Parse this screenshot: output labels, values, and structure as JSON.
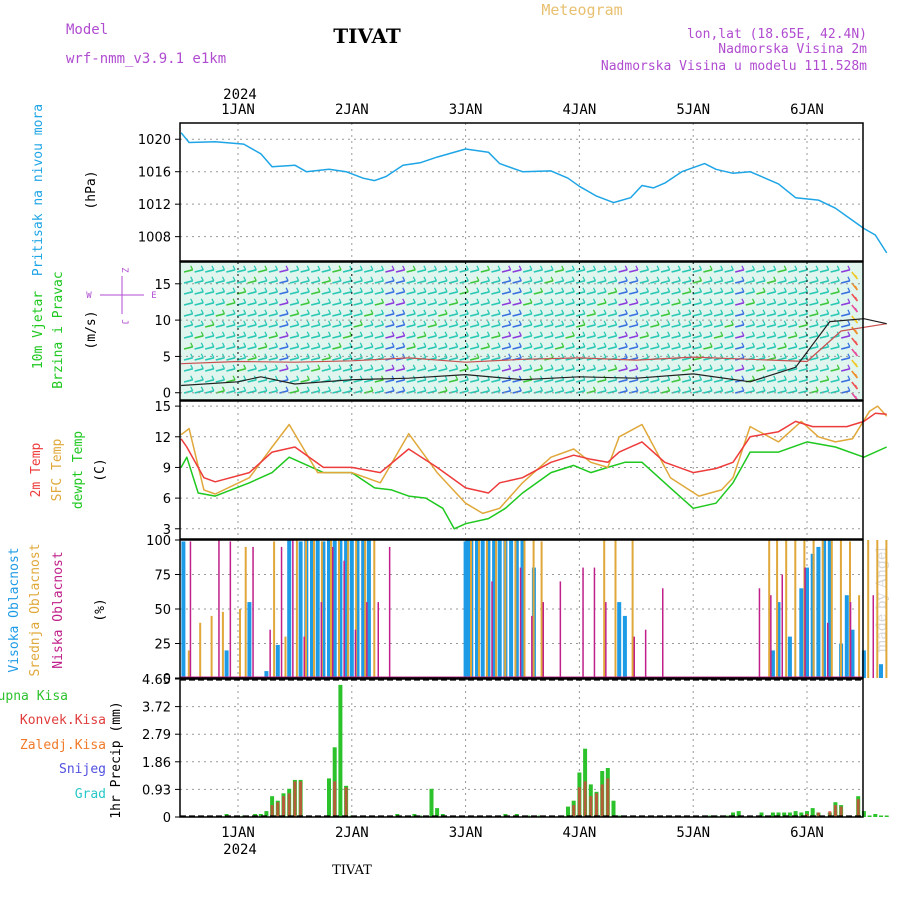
{
  "header": {
    "model_label": "Model",
    "model_name": "wrf-nmm_v3.9.1  e1km",
    "station": "TIVAT",
    "product": "Meteogram",
    "lonlat": "lon,lat (18.65E, 42.4N)",
    "elevation": "Nadmorska Visina 2m",
    "model_elevation": "Nadmorska Visina u modelu 111.528m",
    "footer_station": "TIVAT",
    "watermark": "made by Angel"
  },
  "colors": {
    "pressure": "#1ea5e6",
    "temp2m": "#ee3b3b",
    "sfc": "#e0a83a",
    "dew": "#1ec81e",
    "cloud_high": "#1e9be6",
    "cloud_mid": "#e0a83a",
    "cloud_low": "#c0208a",
    "precip_total": "#2cc22c",
    "precip_conv": "#e03c3c",
    "precip_frozen": "#f07a28",
    "precip_snow": "#5050e0",
    "precip_hail": "#28c8c8",
    "header_purple": "#b04cd0",
    "header_gold": "#e8c070"
  },
  "x_axis": {
    "year": "2024",
    "days": [
      "1JAN",
      "2JAN",
      "3JAN",
      "4JAN",
      "5JAN",
      "6JAN"
    ]
  },
  "panels": {
    "pressure": {
      "ylabel_main": "Pritisak na nivou mora",
      "unit": "(hPa)"
    },
    "wind": {
      "ylabel_main": "10m Vjetar",
      "ylabel_sub": "Brzina i Pravac",
      "unit": "(m/s)",
      "compass": {
        "n": "Z",
        "s": "J",
        "w": "W",
        "e": "E"
      }
    },
    "temp": {
      "label_2m": "2m Temp",
      "label_sfc": "SFC Temp",
      "label_dew": "dewpt Temp",
      "unit": "(C)"
    },
    "cloud": {
      "label_high": "Visoka Oblacnost",
      "label_mid": "Srednja Oblacnost",
      "label_low": "Niska Oblacnost",
      "unit": "(%)"
    },
    "precip": {
      "label_total": "Ukupna Kisa",
      "label_conv": "Konvek.Kisa",
      "label_frozen": "Zaledj.Kisa",
      "label_snow": "Snijeg",
      "label_hail": "Grad",
      "ylabel": "1hr Precip (mm)"
    }
  },
  "chart_data": [
    {
      "type": "line",
      "panel": "pressure",
      "ylabel": "Pritisak na nivou mora (hPa)",
      "ylim": [
        1005,
        1022
      ],
      "yticks": [
        "1008",
        "1012",
        "1016",
        "1020"
      ],
      "x_days": [
        -0.5,
        -0.43,
        -0.2,
        0.05,
        0.2,
        0.3,
        0.5,
        0.6,
        0.8,
        0.95,
        1.1,
        1.2,
        1.3,
        1.45,
        1.6,
        1.75,
        2.0,
        2.2,
        2.3,
        2.5,
        2.75,
        2.9,
        3.0,
        3.15,
        3.3,
        3.45,
        3.55,
        3.65,
        3.75,
        3.9,
        4.1,
        4.2,
        4.35,
        4.5,
        4.75,
        4.9,
        5.1,
        5.25,
        5.4,
        5.5,
        5.6,
        5.7
      ],
      "values": [
        1020.8,
        1019.6,
        1019.7,
        1019.4,
        1018.2,
        1016.6,
        1016.8,
        1016.0,
        1016.3,
        1016.0,
        1015.2,
        1014.9,
        1015.4,
        1016.8,
        1017.1,
        1017.8,
        1018.8,
        1018.4,
        1017.0,
        1016.0,
        1016.1,
        1015.2,
        1014.2,
        1013.0,
        1012.2,
        1012.8,
        1014.3,
        1014.0,
        1014.6,
        1016.0,
        1017.0,
        1016.3,
        1015.8,
        1016.0,
        1014.5,
        1012.8,
        1012.5,
        1011.5,
        1010.0,
        1009.0,
        1008.2,
        1006.0
      ]
    },
    {
      "type": "line",
      "panel": "wind",
      "ylabel": "10m Vjetar Brzina i Pravac (m/s)",
      "ylim": [
        -1,
        18
      ],
      "yticks": [
        "0",
        "5",
        "10",
        "15"
      ],
      "series": [
        {
          "name": "",
          "x_days": [
            -0.5,
            0.0,
            0.5,
            1.0,
            1.5,
            2.0,
            2.5,
            3.0,
            3.5,
            4.0,
            4.5,
            5.0,
            5.3,
            5.7
          ],
          "values": [
            4.0,
            4.3,
            4.2,
            4.4,
            4.8,
            4.2,
            4.6,
            4.8,
            4.5,
            4.9,
            4.6,
            4.3,
            8.5,
            9.5
          ]
        },
        {
          "name": "",
          "x_days": [
            -0.5,
            0.0,
            0.2,
            0.5,
            1.0,
            1.5,
            2.0,
            2.5,
            3.0,
            3.5,
            4.0,
            4.5,
            4.9,
            5.2,
            5.5,
            5.7
          ],
          "values": [
            1.0,
            1.5,
            2.2,
            1.2,
            1.8,
            2.0,
            2.5,
            1.8,
            2.2,
            2.0,
            2.6,
            1.5,
            3.5,
            9.8,
            10.2,
            9.5
          ]
        }
      ]
    },
    {
      "type": "line",
      "panel": "temp",
      "ylabel": "(C)",
      "ylim": [
        2,
        15.5
      ],
      "yticks": [
        "3",
        "6",
        "9",
        "12",
        "15"
      ],
      "series": [
        {
          "name": "2m Temp",
          "x_days": [
            -0.5,
            -0.45,
            -0.3,
            -0.2,
            0.1,
            0.3,
            0.5,
            0.75,
            1.0,
            1.25,
            1.5,
            1.75,
            2.0,
            2.2,
            2.3,
            2.5,
            2.75,
            2.95,
            3.1,
            3.25,
            3.35,
            3.55,
            3.75,
            4.0,
            4.2,
            4.35,
            4.5,
            4.75,
            4.9,
            5.05,
            5.15,
            5.35,
            5.5,
            5.6,
            5.7
          ],
          "values": [
            11.8,
            11.0,
            8.0,
            7.6,
            8.5,
            10.5,
            11.0,
            9.0,
            9.0,
            8.5,
            10.8,
            9.0,
            7.0,
            6.5,
            7.5,
            8.0,
            9.5,
            10.2,
            9.8,
            9.5,
            10.5,
            11.5,
            9.5,
            8.5,
            8.9,
            9.5,
            12.0,
            12.5,
            13.5,
            13.0,
            13.0,
            13.0,
            13.5,
            14.3,
            14.2
          ]
        },
        {
          "name": "SFC Temp",
          "x_days": [
            -0.5,
            -0.43,
            -0.3,
            -0.2,
            0.1,
            0.3,
            0.45,
            0.7,
            1.0,
            1.25,
            1.5,
            1.75,
            2.0,
            2.15,
            2.3,
            2.5,
            2.75,
            2.95,
            3.1,
            3.25,
            3.35,
            3.55,
            3.8,
            4.05,
            4.25,
            4.35,
            4.5,
            4.75,
            4.95,
            5.1,
            5.25,
            5.4,
            5.55,
            5.62,
            5.7
          ],
          "values": [
            12.2,
            12.8,
            6.8,
            6.4,
            8.0,
            11.0,
            13.2,
            8.5,
            8.5,
            7.5,
            12.3,
            8.5,
            5.5,
            4.5,
            5.0,
            7.5,
            10.0,
            10.8,
            9.5,
            9.0,
            12.0,
            13.2,
            8.0,
            6.2,
            6.8,
            8.0,
            13.0,
            11.5,
            13.5,
            12.0,
            11.5,
            11.8,
            14.5,
            15.0,
            14.0
          ]
        },
        {
          "name": "dewpt Temp",
          "x_days": [
            -0.5,
            -0.45,
            -0.35,
            -0.2,
            0.1,
            0.3,
            0.45,
            0.75,
            1.0,
            1.2,
            1.35,
            1.5,
            1.65,
            1.8,
            1.9,
            2.0,
            2.2,
            2.35,
            2.5,
            2.75,
            2.95,
            3.1,
            3.25,
            3.4,
            3.55,
            3.8,
            4.0,
            4.2,
            4.35,
            4.5,
            4.75,
            5.0,
            5.25,
            5.5,
            5.7
          ],
          "values": [
            9.0,
            10.0,
            6.5,
            6.2,
            7.5,
            8.5,
            10.0,
            8.5,
            8.5,
            7.0,
            6.8,
            6.2,
            6.0,
            5.0,
            3.0,
            3.5,
            4.0,
            5.0,
            6.5,
            8.5,
            9.2,
            8.5,
            9.0,
            9.5,
            9.5,
            7.0,
            5.0,
            5.5,
            7.5,
            10.5,
            10.5,
            11.5,
            11.0,
            10.0,
            11.0
          ]
        }
      ]
    },
    {
      "type": "bar",
      "panel": "cloud",
      "ylabel": "(%)",
      "ylim": [
        0,
        100
      ],
      "yticks": [
        "0",
        "25",
        "50",
        "75",
        "100"
      ],
      "series": [
        {
          "name": "Visoka Oblacnost",
          "x_days": [
            -0.48,
            -0.1,
            0.1,
            0.25,
            0.35,
            0.45,
            0.55,
            0.6,
            0.65,
            0.7,
            0.75,
            0.8,
            0.85,
            0.9,
            0.95,
            1.0,
            1.05,
            1.1,
            1.15,
            2.0,
            2.02,
            2.05,
            2.1,
            2.15,
            2.2,
            2.25,
            2.3,
            2.35,
            2.4,
            2.45,
            2.5,
            2.6,
            3.35,
            3.4,
            4.7,
            4.75,
            4.85,
            4.95,
            5.0,
            5.05,
            5.1,
            5.15,
            5.2,
            5.3,
            5.35,
            5.4,
            5.5,
            5.65
          ],
          "values": [
            99,
            20,
            55,
            5,
            24,
            100,
            99,
            100,
            100,
            100,
            99,
            100,
            100,
            100,
            100,
            100,
            100,
            100,
            100,
            99,
            100,
            100,
            100,
            100,
            100,
            100,
            100,
            100,
            100,
            100,
            100,
            80,
            55,
            45,
            20,
            55,
            30,
            65,
            80,
            90,
            95,
            100,
            100,
            25,
            60,
            35,
            20,
            10
          ]
        },
        {
          "name": "Srednja Oblacnost",
          "x_days": [
            -0.45,
            -0.35,
            -0.25,
            -0.15,
            0.0,
            0.05,
            0.3,
            0.4,
            0.5,
            0.58,
            0.65,
            0.72,
            0.8,
            0.87,
            0.95,
            1.02,
            1.1,
            1.18,
            2.03,
            2.1,
            2.17,
            2.25,
            2.33,
            2.42,
            2.5,
            2.58,
            2.65,
            3.2,
            3.3,
            3.45,
            4.65,
            4.72,
            4.8,
            4.88,
            4.96,
            5.04,
            5.12,
            5.2,
            5.28,
            5.36,
            5.44,
            5.52,
            5.6,
            5.68
          ],
          "values": [
            20,
            40,
            45,
            48,
            50,
            95,
            99,
            30,
            100,
            100,
            100,
            99,
            100,
            100,
            100,
            100,
            100,
            100,
            100,
            100,
            100,
            100,
            100,
            100,
            100,
            100,
            99,
            100,
            100,
            100,
            100,
            100,
            100,
            100,
            100,
            100,
            100,
            100,
            100,
            99,
            60,
            100,
            100,
            100
          ]
        },
        {
          "name": "Niska Oblacnost",
          "x_days": [
            -0.4,
            -0.15,
            -0.05,
            0.15,
            0.3,
            0.4,
            0.5,
            0.6,
            0.75,
            0.85,
            0.95,
            1.05,
            1.15,
            1.25,
            1.35,
            2.25,
            2.5,
            2.6,
            2.7,
            2.85,
            3.05,
            3.15,
            3.25,
            3.5,
            3.6,
            3.75,
            4.6,
            4.7,
            4.8,
            5.0,
            5.2,
            5.4,
            5.6
          ],
          "values": [
            99,
            100,
            99,
            95,
            35,
            95,
            100,
            30,
            55,
            95,
            85,
            35,
            55,
            55,
            95,
            70,
            80,
            45,
            55,
            70,
            80,
            80,
            55,
            30,
            35,
            65,
            65,
            60,
            75,
            80,
            40,
            55,
            60
          ]
        }
      ]
    },
    {
      "type": "bar",
      "panel": "precip",
      "ylabel": "1hr Precip (mm)",
      "ylim": [
        0,
        4.65
      ],
      "yticks": [
        "0",
        "0.93",
        "1.86",
        "2.79",
        "3.72",
        "4.65"
      ],
      "series": [
        {
          "name": "Ukupna Kisa",
          "x_days": [
            -0.1,
            0.05,
            0.15,
            0.2,
            0.25,
            0.3,
            0.35,
            0.4,
            0.45,
            0.5,
            0.55,
            0.8,
            0.85,
            0.9,
            0.95,
            1.0,
            1.4,
            1.55,
            1.6,
            1.7,
            1.75,
            1.8,
            2.35,
            2.45,
            2.55,
            2.65,
            2.85,
            2.9,
            2.95,
            3.0,
            3.05,
            3.1,
            3.15,
            3.2,
            3.25,
            3.3,
            3.35,
            4.15,
            4.2,
            4.3,
            4.35,
            4.4,
            4.5,
            4.6,
            4.7,
            4.75,
            4.8,
            4.85,
            4.9,
            4.95,
            5.0,
            5.05,
            5.1,
            5.2,
            5.25,
            5.3,
            5.45,
            5.5,
            5.55,
            5.6,
            5.65,
            5.7
          ],
          "values": [
            0.1,
            0.05,
            0.1,
            0.1,
            0.2,
            0.7,
            0.55,
            0.8,
            0.95,
            1.25,
            1.25,
            1.3,
            2.35,
            4.45,
            1.05,
            0.05,
            0.1,
            0.1,
            0.05,
            0.95,
            0.3,
            0.1,
            0.1,
            0.1,
            0.05,
            0.05,
            0.05,
            0.35,
            0.55,
            1.5,
            2.3,
            1.1,
            0.85,
            1.55,
            1.65,
            0.55,
            0.05,
            0.05,
            0.05,
            0.05,
            0.15,
            0.2,
            0.05,
            0.15,
            0.15,
            0.15,
            0.15,
            0.15,
            0.2,
            0.15,
            0.2,
            0.3,
            0.15,
            0.15,
            0.5,
            0.4,
            0.7,
            0.2,
            0.05,
            0.1,
            0.05,
            0.05
          ]
        },
        {
          "name": "Konvek.Kisa",
          "x_days": [
            0.3,
            0.35,
            0.4,
            0.45,
            0.5,
            0.55,
            0.85,
            0.95,
            2.95,
            3.0,
            3.05,
            3.1,
            3.15,
            3.2,
            3.25,
            5.0,
            5.1,
            5.2,
            5.25,
            5.3,
            5.45
          ],
          "values": [
            0.4,
            0.5,
            0.7,
            0.8,
            1.2,
            1.2,
            1.2,
            1.0,
            0.4,
            1.0,
            1.2,
            0.7,
            0.8,
            1.1,
            1.3,
            0.1,
            0.15,
            0.2,
            0.4,
            0.35,
            0.6
          ]
        }
      ]
    }
  ]
}
